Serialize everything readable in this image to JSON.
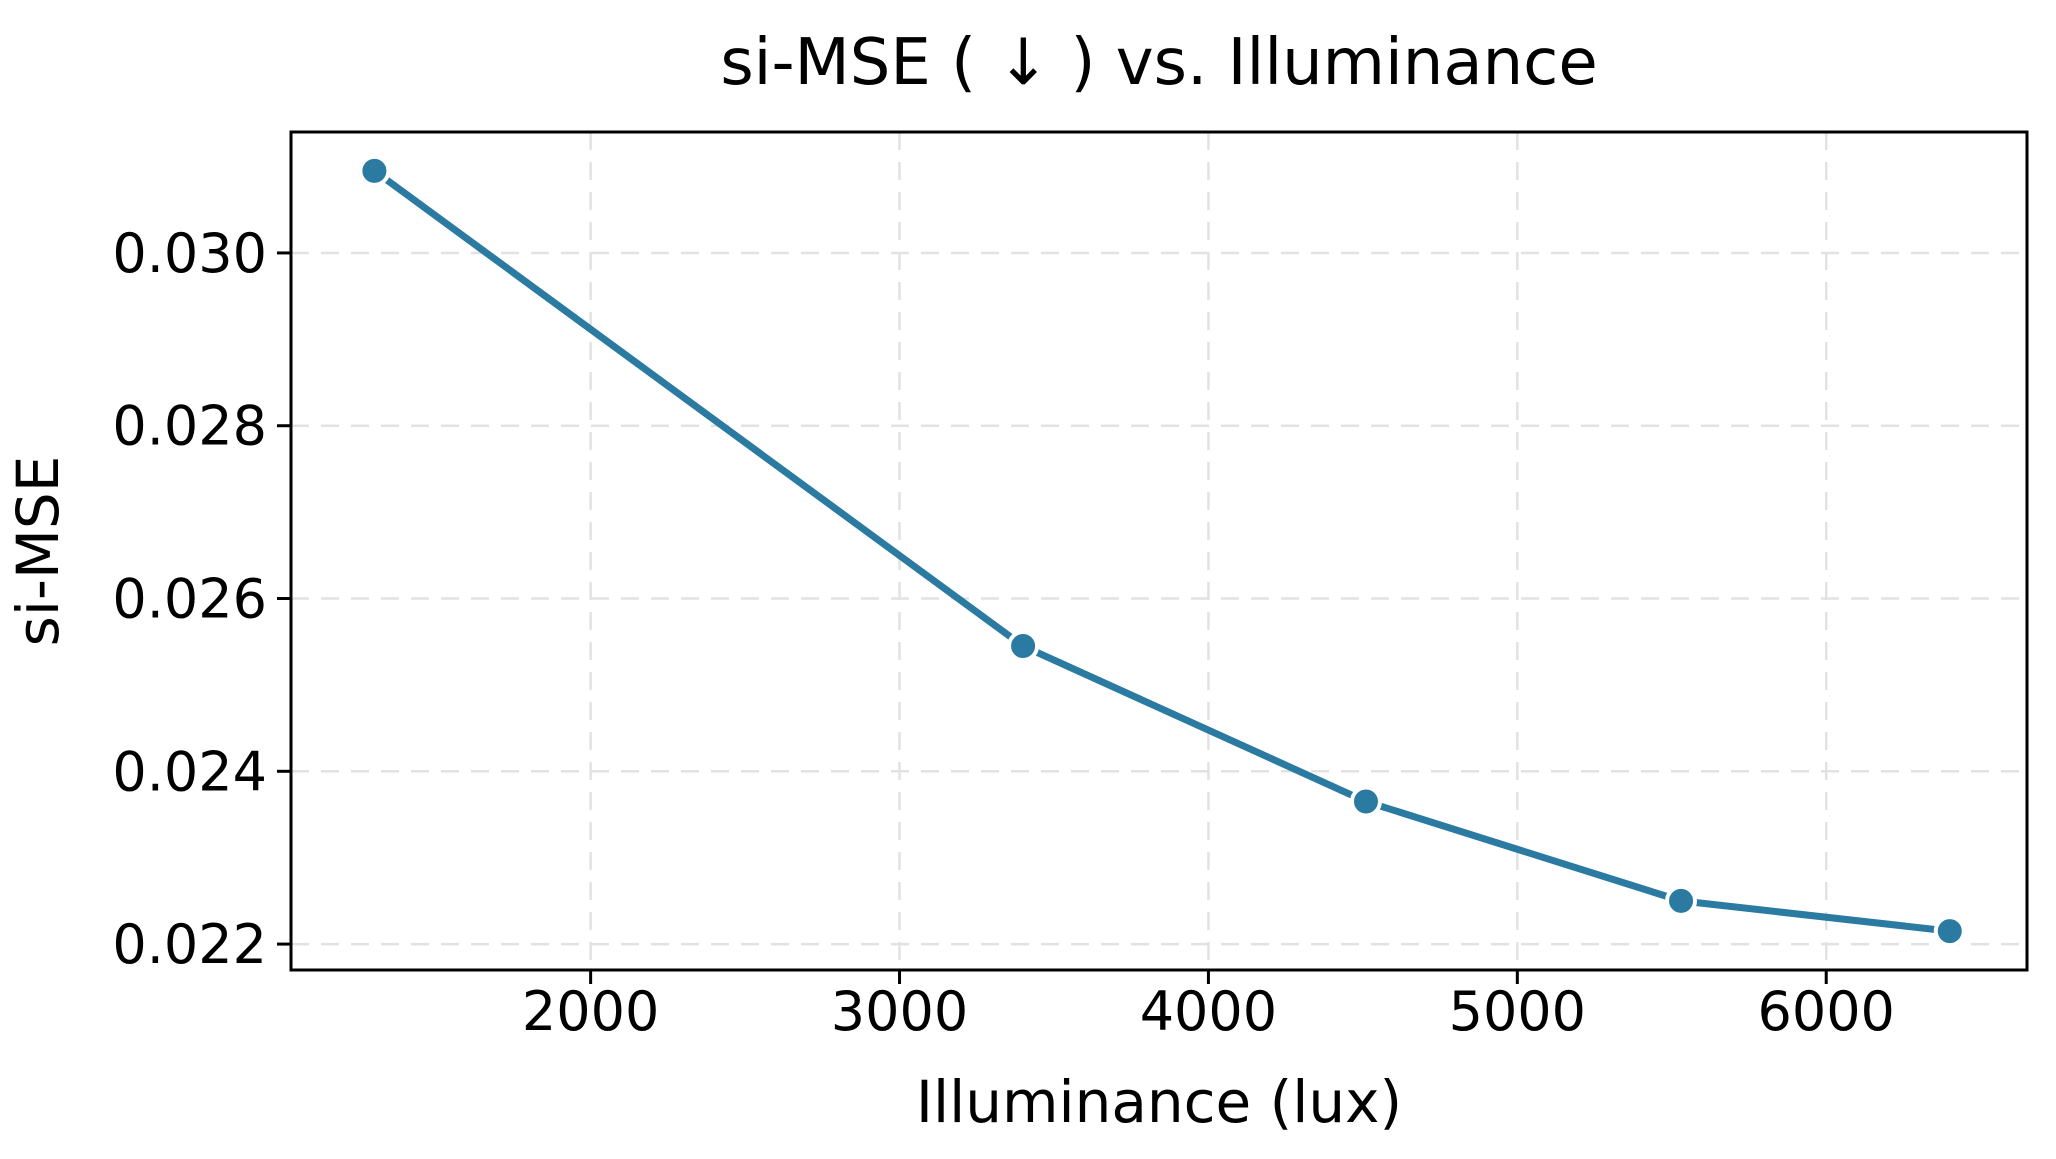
{
  "chart_data": {
    "type": "line",
    "title": "si-MSE ( ↓ ) vs. Illuminance",
    "xlabel": "Illuminance (lux)",
    "ylabel": "si-MSE",
    "series": [
      {
        "name": "si-MSE",
        "x": [
          1300,
          3400,
          4510,
          5530,
          6400
        ],
        "y": [
          0.03095,
          0.02545,
          0.02365,
          0.0225,
          0.02215
        ]
      }
    ],
    "xlim": [
      1030,
      6650
    ],
    "ylim": [
      0.0217,
      0.0314
    ],
    "xticks": [
      2000,
      3000,
      4000,
      5000,
      6000
    ],
    "xtick_labels": [
      "2000",
      "3000",
      "4000",
      "5000",
      "6000"
    ],
    "yticks": [
      0.022,
      0.024,
      0.026,
      0.028,
      0.03
    ],
    "ytick_labels": [
      "0.022",
      "0.024",
      "0.026",
      "0.028",
      "0.030"
    ],
    "grid": "both, dashed",
    "legend_position": "none",
    "colors": {
      "line": "#2a7aa1",
      "marker_fill": "#2a7aa1",
      "marker_edge": "#ffffff",
      "grid": "#e2e2e2",
      "axis": "#000000",
      "text": "#000000",
      "background": "#ffffff"
    }
  }
}
